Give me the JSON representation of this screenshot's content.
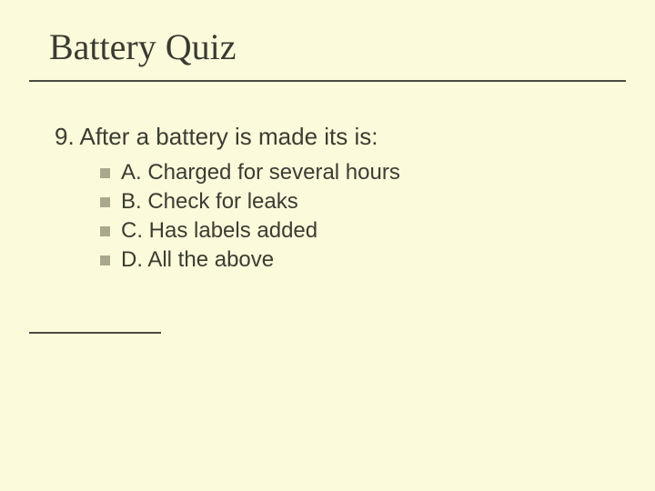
{
  "slide": {
    "background_color": "#fbfada",
    "text_color": "#3c3c34",
    "rule_color": "#4a4a40",
    "bullet_color": "#a8a88c",
    "title": {
      "text": "Battery Quiz",
      "font_family": "Times New Roman",
      "font_size_pt": 40
    },
    "question": {
      "number": "9.",
      "text": "After a battery is made its is:",
      "font_size_pt": 26
    },
    "options": [
      {
        "label": "A. Charged for several hours"
      },
      {
        "label": "B. Check for leaks"
      },
      {
        "label": "C. Has labels added"
      },
      {
        "label": "D.  All the above"
      }
    ],
    "option_font_size_pt": 24
  }
}
